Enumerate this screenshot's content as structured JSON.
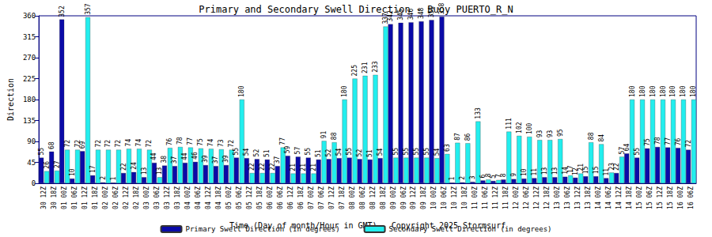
{
  "chart_data": {
    "type": "bar",
    "title": "Primary and Secondary Swell Direction - Buoy PUERTO_R_N",
    "x_label": "Time (Day of month/Hour in GMT) - Copyright 2025 Stormsurf",
    "y_label": "Direction",
    "categories": [
      "30 12Z",
      "30 18Z",
      "01 00Z",
      "01 06Z",
      "01 12Z",
      "01 18Z",
      "02 00Z",
      "02 06Z",
      "02 12Z",
      "02 18Z",
      "03 00Z",
      "03 06Z",
      "03 12Z",
      "03 18Z",
      "04 00Z",
      "04 06Z",
      "04 12Z",
      "04 18Z",
      "05 00Z",
      "05 06Z",
      "05 12Z",
      "05 18Z",
      "06 00Z",
      "06 06Z",
      "06 12Z",
      "06 18Z",
      "07 00Z",
      "07 06Z",
      "07 12Z",
      "07 18Z",
      "08 00Z",
      "08 06Z",
      "08 12Z",
      "08 18Z",
      "09 00Z",
      "09 06Z",
      "09 12Z",
      "09 18Z",
      "10 00Z",
      "10 06Z",
      "10 12Z",
      "10 18Z",
      "11 00Z",
      "11 06Z",
      "11 12Z",
      "11 18Z",
      "12 00Z",
      "12 06Z",
      "12 12Z",
      "12 18Z",
      "13 00Z",
      "13 06Z",
      "13 12Z",
      "13 18Z",
      "14 00Z",
      "14 06Z",
      "14 12Z",
      "14 18Z",
      "15 00Z",
      "15 06Z",
      "15 12Z",
      "15 18Z",
      "16 00Z",
      "16 06Z"
    ],
    "series": [
      {
        "name": "Primary Swell Direction (in degrees)",
        "color": "#0a0aa8",
        "values": [
          55,
          68,
          352,
          10,
          69,
          17,
          2,
          1,
          22,
          24,
          13,
          44,
          38,
          37,
          44,
          46,
          39,
          37,
          39,
          55,
          54,
          52,
          51,
          37,
          59,
          57,
          55,
          51,
          52,
          54,
          55,
          52,
          51,
          54,
          342,
          345,
          346,
          348,
          351,
          358,
          1,
          2,
          3,
          6,
          5,
          8,
          9,
          10,
          11,
          13,
          13,
          14,
          12,
          15,
          15,
          11,
          22,
          64,
          55,
          75,
          78,
          77,
          76,
          72
        ]
      },
      {
        "name": "Secondary Swell Direction (in degrees)",
        "color": "#22eeee",
        "values": [
          26,
          27,
          72,
          72,
          357,
          72,
          72,
          72,
          74,
          74,
          72,
          13,
          76,
          78,
          77,
          75,
          74,
          73,
          72,
          180,
          22,
          22,
          22,
          77,
          21,
          21,
          21,
          91,
          88,
          180,
          225,
          231,
          233,
          337,
          55,
          55,
          55,
          55,
          54,
          63,
          87,
          86,
          133,
          8,
          7,
          111,
          102,
          100,
          93,
          93,
          95,
          17,
          21,
          88,
          84,
          23,
          57,
          180,
          180,
          180,
          180,
          180,
          180,
          180
        ]
      }
    ],
    "ylim": [
      0,
      360
    ],
    "yticks": [
      0,
      45,
      90,
      135,
      180,
      225,
      270,
      315,
      360
    ],
    "grid": false,
    "legend": "bottom",
    "data_labels": true
  }
}
